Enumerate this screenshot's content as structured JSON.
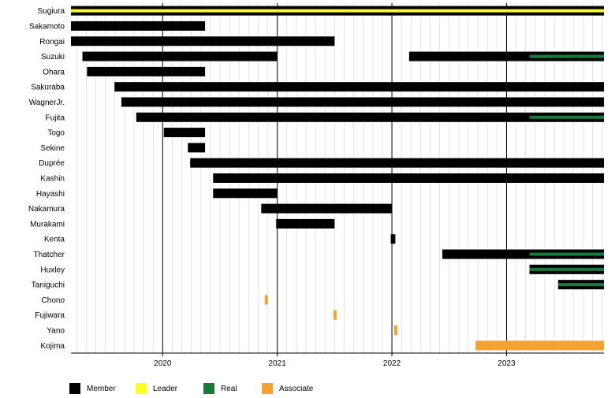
{
  "chart_data": {
    "type": "timeline",
    "title": "",
    "x_range": [
      2019.2,
      2023.85
    ],
    "x_ticks": [
      2020,
      2021,
      2022,
      2023
    ],
    "x_tick_labels": [
      "2020",
      "2021",
      "2022",
      "2023"
    ],
    "grid": "vertical, one minor line per month",
    "members": [
      "Sugiura",
      "Sakamoto",
      "Rongai",
      "Suzuki",
      "Ohara",
      "Sakuraba",
      "WagnerJr.",
      "Fujita",
      "Togo",
      "Sekine",
      "Duprée",
      "Kashin",
      "Hayashi",
      "Nakamura",
      "Murakami",
      "Kenta",
      "Thatcher",
      "Huxley",
      "Taniguchi",
      "Chono",
      "Fujiwara",
      "Yano",
      "Kojima"
    ],
    "roles": [
      {
        "name": "Member",
        "color": "#000000"
      },
      {
        "name": "Leader",
        "color": "#ffff22"
      },
      {
        "name": "Real",
        "color": "#167c3c"
      },
      {
        "name": "Associate",
        "color": "#f4a232"
      }
    ],
    "periods": [
      {
        "member": "Sugiura",
        "role": "Member",
        "start": 2019.2,
        "end": 2023.85
      },
      {
        "member": "Sugiura",
        "role": "Leader",
        "start": 2019.2,
        "end": 2023.85
      },
      {
        "member": "Sakamoto",
        "role": "Member",
        "start": 2019.2,
        "end": 2020.37
      },
      {
        "member": "Rongai",
        "role": "Member",
        "start": 2019.2,
        "end": 2021.5
      },
      {
        "member": "Suzuki",
        "role": "Member",
        "start": 2019.3,
        "end": 2021.0
      },
      {
        "member": "Suzuki",
        "role": "Member",
        "start": 2022.15,
        "end": 2023.85
      },
      {
        "member": "Suzuki",
        "role": "Real",
        "start": 2023.2,
        "end": 2023.85
      },
      {
        "member": "Ohara",
        "role": "Member",
        "start": 2019.34,
        "end": 2020.37
      },
      {
        "member": "Sakuraba",
        "role": "Member",
        "start": 2019.58,
        "end": 2023.85
      },
      {
        "member": "WagnerJr.",
        "role": "Member",
        "start": 2019.64,
        "end": 2023.85
      },
      {
        "member": "Fujita",
        "role": "Member",
        "start": 2019.77,
        "end": 2023.85
      },
      {
        "member": "Fujita",
        "role": "Real",
        "start": 2023.2,
        "end": 2023.85
      },
      {
        "member": "Togo",
        "role": "Member",
        "start": 2020.01,
        "end": 2020.37
      },
      {
        "member": "Sekine",
        "role": "Member",
        "start": 2020.22,
        "end": 2020.37
      },
      {
        "member": "Duprée",
        "role": "Member",
        "start": 2020.24,
        "end": 2023.85
      },
      {
        "member": "Kashin",
        "role": "Member",
        "start": 2020.44,
        "end": 2023.85
      },
      {
        "member": "Hayashi",
        "role": "Member",
        "start": 2020.44,
        "end": 2021.0
      },
      {
        "member": "Nakamura",
        "role": "Member",
        "start": 2020.86,
        "end": 2022.0
      },
      {
        "member": "Murakami",
        "role": "Member",
        "start": 2020.99,
        "end": 2021.5
      },
      {
        "member": "Kenta",
        "role": "Member",
        "start": 2021.99,
        "end": 2022.03
      },
      {
        "member": "Thatcher",
        "role": "Member",
        "start": 2022.44,
        "end": 2023.85
      },
      {
        "member": "Thatcher",
        "role": "Real",
        "start": 2023.2,
        "end": 2023.85
      },
      {
        "member": "Huxley",
        "role": "Member",
        "start": 2023.2,
        "end": 2023.85
      },
      {
        "member": "Huxley",
        "role": "Real",
        "start": 2023.2,
        "end": 2023.85
      },
      {
        "member": "Taniguchi",
        "role": "Member",
        "start": 2023.45,
        "end": 2023.85
      },
      {
        "member": "Taniguchi",
        "role": "Real",
        "start": 2023.45,
        "end": 2023.85
      },
      {
        "member": "Chono",
        "role": "Associate",
        "start": 2020.89,
        "end": 2020.9
      },
      {
        "member": "Fujiwara",
        "role": "Associate",
        "start": 2021.49,
        "end": 2021.5
      },
      {
        "member": "Yano",
        "role": "Associate",
        "start": 2022.02,
        "end": 2022.03
      },
      {
        "member": "Kojima",
        "role": "Associate",
        "start": 2022.73,
        "end": 2023.85
      }
    ]
  }
}
